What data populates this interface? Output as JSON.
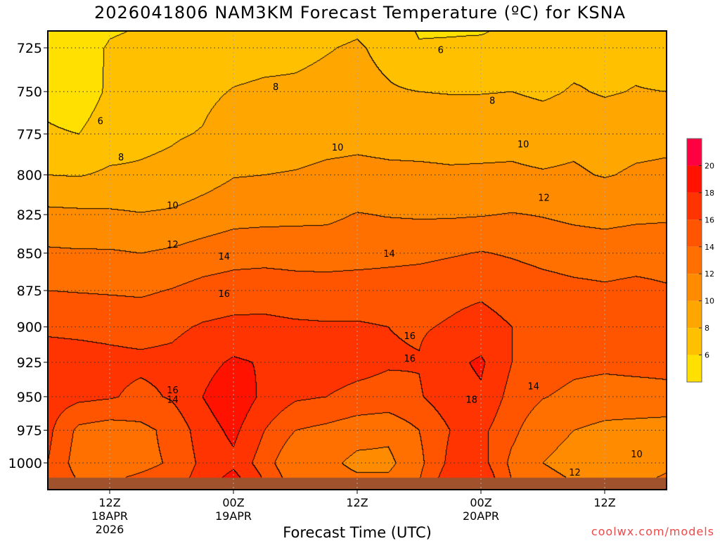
{
  "chart_data": {
    "type": "heatmap",
    "title": "2026041806 NAM3KM Forecast Temperature (ºC) for KSNA",
    "xlabel": "Forecast Time (UTC)",
    "ylabel": "",
    "x_unit": "forecast hour",
    "xlim": [
      0,
      60
    ],
    "ylim_hPa": [
      1021,
      715
    ],
    "y_scale": "log",
    "ground_pressure_hPa": 1011,
    "x_ticks": [
      {
        "hour": 6,
        "lines": [
          "12Z",
          "18APR",
          "2026"
        ]
      },
      {
        "hour": 18,
        "lines": [
          "00Z",
          "19APR"
        ]
      },
      {
        "hour": 30,
        "lines": [
          "12Z"
        ]
      },
      {
        "hour": 42,
        "lines": [
          "00Z",
          "20APR"
        ]
      },
      {
        "hour": 54,
        "lines": [
          "12Z"
        ]
      }
    ],
    "y_ticks": [
      725,
      750,
      775,
      800,
      825,
      850,
      875,
      900,
      925,
      950,
      975,
      1000
    ],
    "grid": true,
    "pressure_levels": [
      715,
      725,
      750,
      775,
      800,
      825,
      850,
      875,
      900,
      925,
      950,
      975,
      1000,
      1015
    ],
    "hours": [
      0,
      3,
      6,
      9,
      12,
      15,
      18,
      21,
      24,
      27,
      30,
      33,
      36,
      39,
      42,
      45,
      48,
      51,
      54,
      57,
      60
    ],
    "temperature": [
      [
        4.6,
        5.0,
        5.5,
        6.2,
        8.0,
        10.5,
        12.3,
        14.0,
        15.7,
        16.8,
        17.0,
        16.5,
        16.0,
        16.0
      ],
      [
        4.7,
        5.1,
        5.0,
        6.0,
        7.9,
        10.4,
        12.2,
        13.9,
        15.6,
        16.7,
        16.5,
        13.5,
        13.0,
        14.0
      ],
      [
        5.8,
        6.2,
        6.3,
        7.0,
        8.3,
        10.3,
        12.2,
        13.8,
        15.5,
        16.5,
        16.2,
        13.0,
        13.0,
        14.0
      ],
      [
        6.1,
        6.5,
        6.8,
        7.5,
        8.3,
        10.1,
        12.0,
        13.7,
        15.3,
        16.4,
        15.5,
        13.5,
        13.5,
        14.5
      ],
      [
        6.3,
        6.7,
        7.2,
        7.8,
        8.5,
        10.3,
        12.3,
        14.1,
        15.6,
        16.5,
        16.2,
        14.5,
        14.2,
        15.0
      ],
      [
        6.6,
        7.0,
        7.6,
        8.1,
        9.2,
        10.8,
        12.8,
        14.7,
        16.2,
        17.3,
        18.0,
        17.0,
        16.5,
        17.0
      ],
      [
        6.8,
        7.2,
        8.1,
        9.0,
        9.9,
        11.3,
        13.2,
        15.0,
        16.5,
        18.3,
        19.5,
        18.5,
        17.5,
        19.0
      ],
      [
        7.0,
        7.4,
        8.3,
        9.2,
        10.0,
        11.4,
        13.3,
        15.1,
        16.5,
        17.8,
        17.5,
        16.0,
        15.0,
        16.0
      ],
      [
        7.2,
        7.6,
        8.3,
        9.3,
        10.1,
        11.5,
        13.2,
        14.9,
        16.3,
        16.9,
        16.3,
        14.0,
        12.0,
        13.0
      ],
      [
        7.5,
        7.9,
        8.5,
        9.5,
        10.3,
        11.6,
        13.1,
        14.9,
        16.2,
        16.8,
        16.0,
        13.5,
        12.5,
        13.0
      ],
      [
        7.8,
        8.2,
        8.6,
        9.6,
        10.4,
        12.1,
        13.2,
        15.0,
        16.2,
        16.6,
        15.5,
        12.8,
        11.5,
        12.5
      ],
      [
        7.1,
        7.5,
        8.2,
        9.5,
        10.3,
        11.9,
        13.4,
        15.0,
        16.0,
        16.2,
        15.3,
        12.5,
        11.5,
        12.5
      ],
      [
        5.8,
        6.2,
        8.0,
        9.4,
        10.3,
        11.8,
        13.5,
        15.2,
        15.8,
        16.1,
        15.8,
        14.0,
        13.5,
        14.0
      ],
      [
        5.8,
        6.3,
        7.9,
        9.4,
        10.2,
        11.8,
        13.8,
        15.5,
        16.2,
        17.5,
        17.2,
        16.0,
        16.5,
        17.5
      ],
      [
        5.8,
        6.5,
        7.9,
        9.5,
        10.2,
        11.9,
        14.1,
        15.7,
        16.7,
        18.3,
        17.7,
        16.5,
        16.8,
        18.0
      ],
      [
        6.4,
        6.8,
        8.0,
        9.6,
        10.2,
        12.1,
        13.8,
        15.2,
        16.0,
        16.0,
        15.3,
        14.5,
        13.5,
        14.0
      ],
      [
        6.2,
        7.0,
        7.6,
        9.4,
        10.1,
        11.9,
        13.4,
        14.8,
        15.5,
        15.0,
        14.1,
        12.5,
        12.0,
        12.5
      ],
      [
        6.8,
        7.2,
        8.2,
        9.6,
        10.2,
        11.6,
        13.1,
        14.5,
        15.0,
        14.5,
        13.5,
        12.0,
        11.5,
        12.0
      ],
      [
        7.0,
        7.4,
        7.8,
        9.3,
        9.9,
        11.4,
        13.0,
        14.3,
        14.5,
        14.4,
        13.2,
        11.5,
        10.8,
        11.5
      ],
      [
        7.0,
        7.4,
        8.1,
        9.5,
        10.2,
        11.6,
        13.2,
        14.5,
        14.7,
        14.5,
        13.3,
        11.3,
        10.5,
        11.8
      ],
      [
        6.3,
        6.7,
        8.0,
        9.6,
        10.3,
        11.7,
        13.2,
        14.2,
        15.6,
        14.5,
        13.5,
        11.0,
        11.5,
        12.5
      ]
    ],
    "color_levels": [
      6,
      8,
      10,
      12,
      14,
      16,
      18,
      20
    ],
    "colors": [
      "#ffe000",
      "#ffc000",
      "#ffa600",
      "#ff8c00",
      "#ff7000",
      "#ff5500",
      "#ff3400",
      "#ff1200",
      "#ff0040"
    ],
    "ground_color": "#a0522d",
    "contour_labels": [
      {
        "text": "6",
        "hour": 5.1,
        "p": 767
      },
      {
        "text": "6",
        "hour": 38.1,
        "p": 726
      },
      {
        "text": "8",
        "hour": 22.1,
        "p": 747
      },
      {
        "text": "8",
        "hour": 7.1,
        "p": 789
      },
      {
        "text": "8",
        "hour": 43.1,
        "p": 755
      },
      {
        "text": "10",
        "hour": 28.1,
        "p": 783
      },
      {
        "text": "10",
        "hour": 12.1,
        "p": 819
      },
      {
        "text": "10",
        "hour": 46.1,
        "p": 781
      },
      {
        "text": "10",
        "hour": 57.1,
        "p": 993
      },
      {
        "text": "12",
        "hour": 48.1,
        "p": 814
      },
      {
        "text": "12",
        "hour": 12.1,
        "p": 844
      },
      {
        "text": "12",
        "hour": 51.1,
        "p": 1007
      },
      {
        "text": "14",
        "hour": 17.1,
        "p": 852
      },
      {
        "text": "14",
        "hour": 33.1,
        "p": 850
      },
      {
        "text": "14",
        "hour": 12.1,
        "p": 952
      },
      {
        "text": "14",
        "hour": 47.1,
        "p": 942
      },
      {
        "text": "16",
        "hour": 17.1,
        "p": 877
      },
      {
        "text": "16",
        "hour": 35.1,
        "p": 906
      },
      {
        "text": "16",
        "hour": 35.1,
        "p": 922
      },
      {
        "text": "16",
        "hour": 12.1,
        "p": 945
      },
      {
        "text": "18",
        "hour": 41.1,
        "p": 952
      }
    ]
  },
  "watermark": "coolwx.com/models"
}
